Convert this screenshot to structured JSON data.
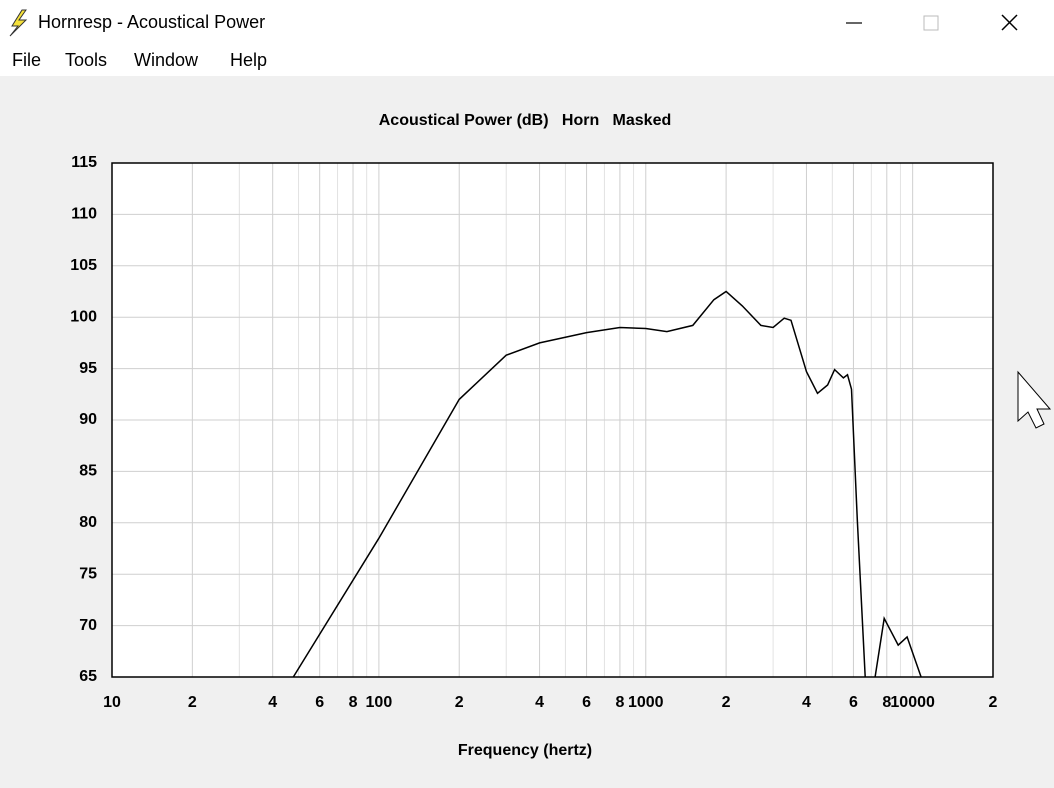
{
  "window": {
    "title": "Hornresp - Acoustical Power"
  },
  "menu": [
    "File",
    "Tools",
    "Window",
    "Help"
  ],
  "chart_data": {
    "type": "line",
    "title": "Acoustical Power (dB)   Horn   Masked",
    "x_label": "Frequency (hertz)",
    "log_x": true,
    "grid": true,
    "xlim": [
      10,
      20000
    ],
    "ylim": [
      65,
      115
    ],
    "xticks": [
      10,
      {
        "value": 20,
        "label": "2"
      },
      {
        "value": 40,
        "label": "4"
      },
      {
        "value": 60,
        "label": "6"
      },
      {
        "value": 80,
        "label": "8"
      },
      100,
      {
        "value": 200,
        "label": "2"
      },
      {
        "value": 400,
        "label": "4"
      },
      {
        "value": 600,
        "label": "6"
      },
      {
        "value": 800,
        "label": "8"
      },
      1000,
      {
        "value": 2000,
        "label": "2"
      },
      {
        "value": 4000,
        "label": "4"
      },
      {
        "value": 6000,
        "label": "6"
      },
      {
        "value": 8000,
        "label": "8"
      },
      10000,
      {
        "value": 20000,
        "label": "2"
      }
    ],
    "x_minor_grid": [
      30,
      50,
      70,
      90,
      300,
      500,
      700,
      900,
      3000,
      5000,
      7000,
      9000
    ],
    "yticks": [
      65,
      70,
      75,
      80,
      85,
      90,
      95,
      100,
      105,
      110,
      115
    ],
    "series": [
      {
        "name": "Acoustical Power",
        "color": "#000000",
        "x": [
          47.8,
          100,
          200,
          300,
          400,
          600,
          800,
          1000,
          1200,
          1500,
          1800,
          2000,
          2300,
          2700,
          3000,
          3300,
          3500,
          4000,
          4400,
          4800,
          5100,
          5500,
          5700,
          5900,
          6200,
          6640,
          6900,
          7230,
          7820,
          8830,
          9530,
          10760
        ],
        "values": [
          65,
          78.5,
          92,
          96.3,
          97.5,
          98.5,
          99.0,
          98.9,
          98.6,
          99.2,
          101.7,
          102.5,
          101.1,
          99.2,
          99.0,
          99.9,
          99.7,
          94.7,
          92.6,
          93.4,
          94.9,
          94.1,
          94.4,
          93.0,
          80.3,
          65,
          null,
          65,
          70.7,
          68.1,
          68.9,
          65
        ]
      }
    ]
  }
}
